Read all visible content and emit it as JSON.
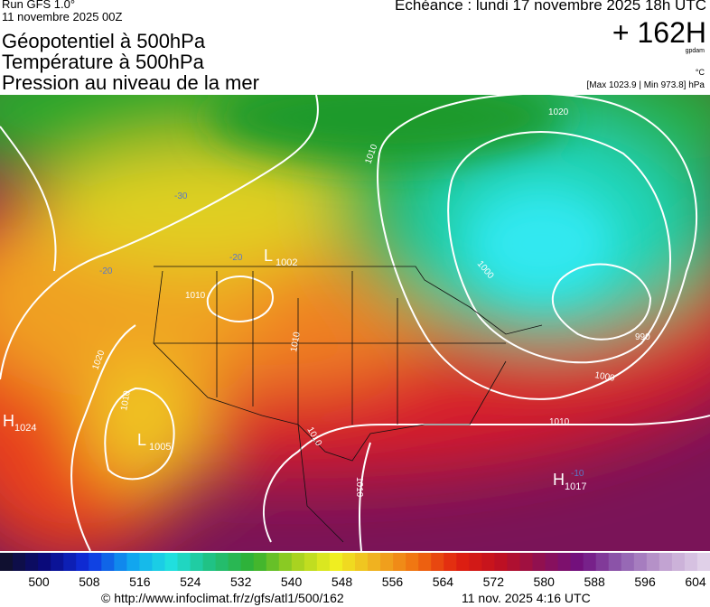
{
  "header": {
    "run": "Run GFS 1.0°",
    "date": "11 novembre 2025 00Z",
    "echeance": "Echéance : lundi 17 novembre 2025 18h UTC",
    "offset": "+ 162H",
    "unit": "gpdam",
    "temp_unit": "°C",
    "range": "[Max 1023.9 | Min 973.8] hPa"
  },
  "titles": [
    "Géopotentiel à 500hPa",
    "Température à 500hPa",
    "Pression au niveau de la mer"
  ],
  "centers": [
    {
      "letter": "H",
      "value": "1024"
    },
    {
      "letter": "L",
      "value": "1005"
    },
    {
      "letter": "L",
      "value": "1002"
    },
    {
      "letter": "H",
      "value": "1017"
    }
  ],
  "isobar_labels": [
    "1010",
    "1020",
    "1000",
    "990",
    "1000",
    "1010",
    "1010",
    "1010",
    "1020",
    "1010",
    "1010",
    "1010"
  ],
  "temperature_labels": [
    "-30",
    "-20",
    "-20",
    "-10"
  ],
  "colorbar": {
    "ticks": [
      500,
      508,
      516,
      524,
      532,
      540,
      548,
      556,
      564,
      572,
      580,
      588,
      596,
      604
    ]
  },
  "footer": {
    "url": "© http://www.infoclimat.fr/z/gfs/atl1/500/162",
    "timestamp": "11 nov. 2025  4:16 UTC"
  }
}
